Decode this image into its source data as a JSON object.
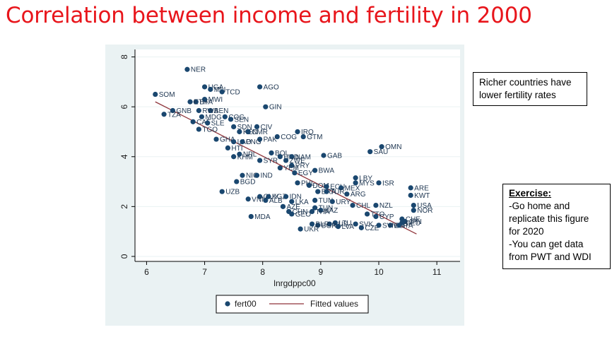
{
  "page": {
    "title": "Correlation between income and fertility in 2000",
    "note": "Richer countries have lower fertility rates",
    "exercise": {
      "title": "Exercise:",
      "lines": [
        "-Go home and",
        "replicate this figure",
        "for 2020",
        "-You can get data",
        "from PWT and WDI"
      ]
    }
  },
  "colors": {
    "title": "#e8151b",
    "marker": "#1a476f",
    "fit_line": "#90353b",
    "panel": "#eaf2f3"
  },
  "chart_data": {
    "type": "scatter",
    "xlabel": "lnrgdppc00",
    "ylabel": "",
    "xlim": [
      5.8,
      11.4
    ],
    "ylim": [
      -0.2,
      8.3
    ],
    "xticks": [
      6,
      7,
      8,
      9,
      10,
      11
    ],
    "yticks": [
      0,
      2,
      4,
      6,
      8
    ],
    "legend": {
      "placement": "bottom",
      "entries": [
        "fert00",
        "Fitted values"
      ]
    },
    "series": [
      {
        "name": "fert00",
        "points": [
          {
            "label": "NER",
            "x": 6.7,
            "y": 7.5
          },
          {
            "label": "UGA",
            "x": 7.0,
            "y": 6.8
          },
          {
            "label": "MLI",
            "x": 7.1,
            "y": 6.7
          },
          {
            "label": "TCD",
            "x": 7.3,
            "y": 6.6
          },
          {
            "label": "AGO",
            "x": 7.95,
            "y": 6.8
          },
          {
            "label": "SOM",
            "x": 6.15,
            "y": 6.5
          },
          {
            "label": "BFA",
            "x": 6.85,
            "y": 6.2
          },
          {
            "label": "MWI",
            "x": 7.0,
            "y": 6.3
          },
          {
            "label": "ETH",
            "x": 6.75,
            "y": 6.2
          },
          {
            "label": "GIN",
            "x": 8.05,
            "y": 6.0
          },
          {
            "label": "BEN",
            "x": 7.1,
            "y": 5.85
          },
          {
            "label": "RWA",
            "x": 6.9,
            "y": 5.85
          },
          {
            "label": "GNB",
            "x": 6.45,
            "y": 5.85
          },
          {
            "label": "TZA",
            "x": 6.3,
            "y": 5.7
          },
          {
            "label": "MDG",
            "x": 6.95,
            "y": 5.6
          },
          {
            "label": "COG",
            "x": 7.35,
            "y": 5.6
          },
          {
            "label": "SEN",
            "x": 7.45,
            "y": 5.5
          },
          {
            "label": "CAF",
            "x": 6.8,
            "y": 5.4
          },
          {
            "label": "SLE",
            "x": 7.05,
            "y": 5.35
          },
          {
            "label": "TGO",
            "x": 6.9,
            "y": 5.1
          },
          {
            "label": "SDN",
            "x": 7.5,
            "y": 5.2
          },
          {
            "label": "CIV",
            "x": 7.9,
            "y": 5.2
          },
          {
            "label": "KEN",
            "x": 7.6,
            "y": 5.0
          },
          {
            "label": "CMR",
            "x": 7.75,
            "y": 5.0
          },
          {
            "label": "COG",
            "x": 8.25,
            "y": 4.8
          },
          {
            "label": "IRQ",
            "x": 8.6,
            "y": 5.0
          },
          {
            "label": "GTM",
            "x": 8.7,
            "y": 4.8
          },
          {
            "label": "PAK",
            "x": 7.95,
            "y": 4.7
          },
          {
            "label": "GHA",
            "x": 7.2,
            "y": 4.7
          },
          {
            "label": "LAO",
            "x": 7.5,
            "y": 4.6
          },
          {
            "label": "PNG",
            "x": 7.65,
            "y": 4.6
          },
          {
            "label": "OMN",
            "x": 10.05,
            "y": 4.4
          },
          {
            "label": "SAU",
            "x": 9.85,
            "y": 4.2
          },
          {
            "label": "HTI",
            "x": 7.4,
            "y": 4.35
          },
          {
            "label": "BOL",
            "x": 8.15,
            "y": 4.15
          },
          {
            "label": "HND",
            "x": 8.3,
            "y": 4.0
          },
          {
            "label": "NAM",
            "x": 8.5,
            "y": 4.0
          },
          {
            "label": "GAB",
            "x": 9.05,
            "y": 4.05
          },
          {
            "label": "KHM",
            "x": 7.5,
            "y": 4.0
          },
          {
            "label": "NPL",
            "x": 7.6,
            "y": 4.1
          },
          {
            "label": "SYR",
            "x": 7.95,
            "y": 3.85
          },
          {
            "label": "ZWE",
            "x": 8.4,
            "y": 3.85
          },
          {
            "label": "PRY",
            "x": 8.5,
            "y": 3.65
          },
          {
            "label": "YEM",
            "x": 8.3,
            "y": 3.55
          },
          {
            "label": "BWA",
            "x": 8.9,
            "y": 3.45
          },
          {
            "label": "EGY",
            "x": 8.55,
            "y": 3.35
          },
          {
            "label": "NIC",
            "x": 7.65,
            "y": 3.25
          },
          {
            "label": "IND",
            "x": 7.9,
            "y": 3.25
          },
          {
            "label": "BGD",
            "x": 7.55,
            "y": 3.0
          },
          {
            "label": "LBY",
            "x": 9.6,
            "y": 3.15
          },
          {
            "label": "MYS",
            "x": 9.6,
            "y": 2.95
          },
          {
            "label": "ISR",
            "x": 10.0,
            "y": 2.95
          },
          {
            "label": "PHL",
            "x": 8.6,
            "y": 2.95
          },
          {
            "label": "DOM",
            "x": 8.8,
            "y": 2.85
          },
          {
            "label": "ECU",
            "x": 9.1,
            "y": 2.8
          },
          {
            "label": "MEX",
            "x": 9.35,
            "y": 2.75
          },
          {
            "label": "ARE",
            "x": 10.55,
            "y": 2.75
          },
          {
            "label": "UZB",
            "x": 7.3,
            "y": 2.6
          },
          {
            "label": "BRA",
            "x": 8.95,
            "y": 2.6
          },
          {
            "label": "TUR",
            "x": 9.1,
            "y": 2.6
          },
          {
            "label": "ARG",
            "x": 9.45,
            "y": 2.5
          },
          {
            "label": "KWT",
            "x": 10.55,
            "y": 2.45
          },
          {
            "label": "GUY",
            "x": 7.95,
            "y": 2.4
          },
          {
            "label": "KGZ",
            "x": 8.1,
            "y": 2.4
          },
          {
            "label": "IDN",
            "x": 8.4,
            "y": 2.4
          },
          {
            "label": "TUN",
            "x": 8.9,
            "y": 2.25
          },
          {
            "label": "VNM",
            "x": 7.75,
            "y": 2.3
          },
          {
            "label": "ALB",
            "x": 8.05,
            "y": 2.25
          },
          {
            "label": "LKA",
            "x": 8.5,
            "y": 2.2
          },
          {
            "label": "URY",
            "x": 9.2,
            "y": 2.2
          },
          {
            "label": "CHL",
            "x": 9.55,
            "y": 2.05
          },
          {
            "label": "NZL",
            "x": 9.95,
            "y": 2.05
          },
          {
            "label": "USA",
            "x": 10.6,
            "y": 2.05
          },
          {
            "label": "AZE",
            "x": 8.35,
            "y": 2.0
          },
          {
            "label": "TUN",
            "x": 8.9,
            "y": 1.95
          },
          {
            "label": "KAZ",
            "x": 9.0,
            "y": 1.85
          },
          {
            "label": "THA",
            "x": 8.85,
            "y": 1.8
          },
          {
            "label": "NOR",
            "x": 10.6,
            "y": 1.85
          },
          {
            "label": "CHN",
            "x": 8.45,
            "y": 1.8
          },
          {
            "label": "GEO",
            "x": 8.5,
            "y": 1.7
          },
          {
            "label": "MDA",
            "x": 7.8,
            "y": 1.6
          },
          {
            "label": "TTO",
            "x": 9.8,
            "y": 1.7
          },
          {
            "label": "CYP",
            "x": 9.95,
            "y": 1.6
          },
          {
            "label": "CHE",
            "x": 10.4,
            "y": 1.5
          },
          {
            "label": "JPN",
            "x": 10.45,
            "y": 1.4
          },
          {
            "label": "RUS",
            "x": 9.15,
            "y": 1.3
          },
          {
            "label": "LTU",
            "x": 9.25,
            "y": 1.35
          },
          {
            "label": "SVK",
            "x": 9.6,
            "y": 1.3
          },
          {
            "label": "BGR",
            "x": 8.95,
            "y": 1.25
          },
          {
            "label": "UKR",
            "x": 8.65,
            "y": 1.1
          },
          {
            "label": "CZE",
            "x": 9.7,
            "y": 1.15
          },
          {
            "label": "ESP",
            "x": 10.2,
            "y": 1.25
          },
          {
            "label": "ITA",
            "x": 10.35,
            "y": 1.25
          },
          {
            "label": "SVN",
            "x": 10.0,
            "y": 1.25
          },
          {
            "label": "LVA",
            "x": 9.3,
            "y": 1.2
          },
          {
            "label": "BLR",
            "x": 8.85,
            "y": 1.3
          },
          {
            "label": "DEU",
            "x": 10.4,
            "y": 1.35
          }
        ]
      },
      {
        "name": "Fitted values",
        "line": [
          [
            6.15,
            6.2
          ],
          [
            10.65,
            0.9
          ]
        ]
      }
    ]
  }
}
